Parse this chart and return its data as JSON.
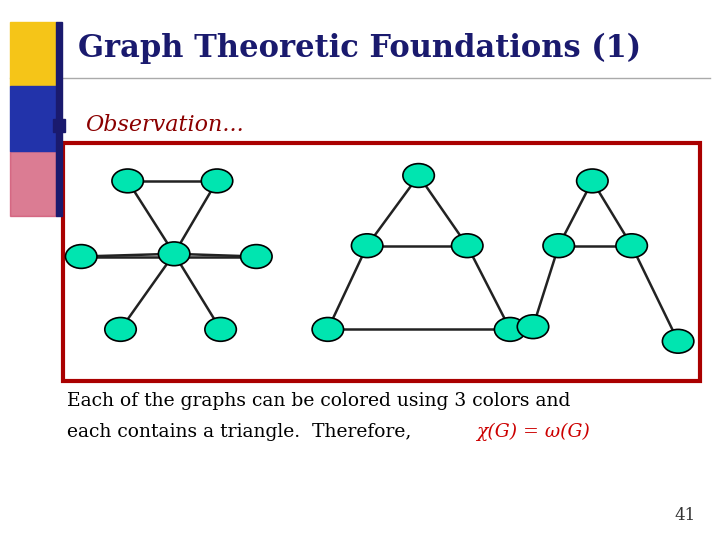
{
  "title": "Graph Theoretic Foundations (1)",
  "title_color": "#1a1a6e",
  "bg_color": "#ffffff",
  "observation_text": "Observation...",
  "observation_color": "#8b0000",
  "body_text_line1": "Each of the graphs can be colored using 3 colors and",
  "body_text_line2": "each contains a triangle.  Therefore, ",
  "body_text_suffix": "χ(G) = ω(G)",
  "body_text_color": "#000000",
  "chi_omega_color": "#cc0000",
  "node_color": "#00e5b0",
  "node_edge_color": "#000000",
  "edge_color": "#222222",
  "box_edge_color": "#aa0000",
  "page_number": "41",
  "hline_color": "#aaaaaa",
  "yellow_sq": "#f5c518",
  "blue_sq": "#2233aa",
  "pink_sq": "#cc4466",
  "dark_bar": "#1a1a6e"
}
